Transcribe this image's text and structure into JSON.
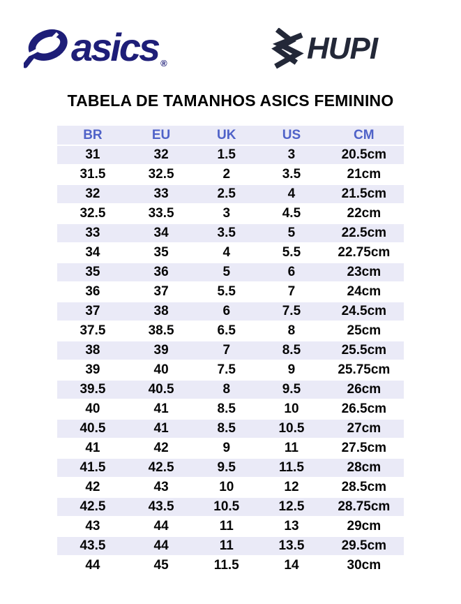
{
  "page": {
    "background": "#ffffff"
  },
  "branding": {
    "asics": {
      "wordmark": "asics",
      "registered_mark": "®",
      "color": "#1e1e78"
    },
    "hupi": {
      "wordmark": "HUPI",
      "color": "#232838"
    }
  },
  "title": "TABELA DE TAMANHOS ASICS FEMININO",
  "chart_data": {
    "type": "table",
    "title": "TABELA DE TAMANHOS ASICS FEMININO",
    "columns": [
      "BR",
      "EU",
      "UK",
      "US",
      "CM"
    ],
    "rows": [
      [
        "31",
        "32",
        "1.5",
        "3",
        "20.5cm"
      ],
      [
        "31.5",
        "32.5",
        "2",
        "3.5",
        "21cm"
      ],
      [
        "32",
        "33",
        "2.5",
        "4",
        "21.5cm"
      ],
      [
        "32.5",
        "33.5",
        "3",
        "4.5",
        "22cm"
      ],
      [
        "33",
        "34",
        "3.5",
        "5",
        "22.5cm"
      ],
      [
        "34",
        "35",
        "4",
        "5.5",
        "22.75cm"
      ],
      [
        "35",
        "36",
        "5",
        "6",
        "23cm"
      ],
      [
        "36",
        "37",
        "5.5",
        "7",
        "24cm"
      ],
      [
        "37",
        "38",
        "6",
        "7.5",
        "24.5cm"
      ],
      [
        "37.5",
        "38.5",
        "6.5",
        "8",
        "25cm"
      ],
      [
        "38",
        "39",
        "7",
        "8.5",
        "25.5cm"
      ],
      [
        "39",
        "40",
        "7.5",
        "9",
        "25.75cm"
      ],
      [
        "39.5",
        "40.5",
        "8",
        "9.5",
        "26cm"
      ],
      [
        "40",
        "41",
        "8.5",
        "10",
        "26.5cm"
      ],
      [
        "40.5",
        "41",
        "8.5",
        "10.5",
        "27cm"
      ],
      [
        "41",
        "42",
        "9",
        "11",
        "27.5cm"
      ],
      [
        "41.5",
        "42.5",
        "9.5",
        "11.5",
        "28cm"
      ],
      [
        "42",
        "43",
        "10",
        "12",
        "28.5cm"
      ],
      [
        "42.5",
        "43.5",
        "10.5",
        "12.5",
        "28.75cm"
      ],
      [
        "43",
        "44",
        "11",
        "13",
        "29cm"
      ],
      [
        "43.5",
        "44",
        "11",
        "13.5",
        "29.5cm"
      ],
      [
        "44",
        "45",
        "11.5",
        "14",
        "30cm"
      ]
    ],
    "style": {
      "header_text_color": "#4f62c8",
      "shaded_row_color": "#eaeaf7",
      "body_text_color": "#000000",
      "shading_pattern": "header row and alternating data rows (1st, 3rd, ...) shaded lavender, others white"
    }
  }
}
